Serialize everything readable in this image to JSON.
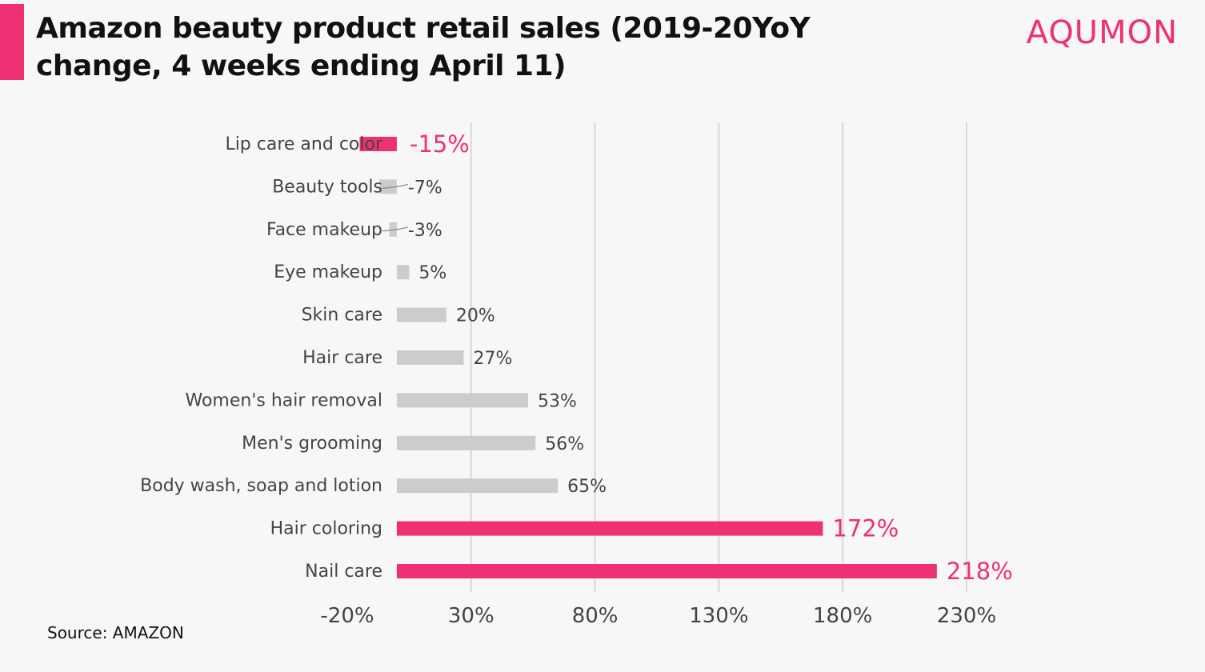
{
  "header": {
    "title": "Amazon beauty product retail sales (2019-20YoY change, 4 weeks ending April 11)",
    "logo_text": "AQUMON"
  },
  "footer": {
    "source": "Source: AMAZON"
  },
  "colors": {
    "highlight": "#ee3175",
    "default_bar": "#cccccc",
    "gridline": "#d9d9d9",
    "background": "#f7f7f7"
  },
  "chart_data": {
    "type": "bar",
    "orientation": "horizontal",
    "title": "Amazon beauty product retail sales (2019-20YoY change, 4 weeks ending April 11)",
    "categories": [
      "Lip care and color",
      "Beauty tools",
      "Face makeup",
      "Eye makeup",
      "Skin care",
      "Hair care",
      "Women's hair removal",
      "Men's grooming",
      "Body wash, soap and  lotion",
      "Hair coloring",
      "Nail care"
    ],
    "values": [
      -15,
      -7,
      -3,
      5,
      20,
      27,
      53,
      56,
      65,
      172,
      218
    ],
    "value_labels": [
      "-15%",
      "-7%",
      "-3%",
      "5%",
      "20%",
      "27%",
      "53%",
      "56%",
      "65%",
      "172%",
      "218%"
    ],
    "highlighted": [
      true,
      false,
      false,
      false,
      false,
      false,
      false,
      false,
      false,
      true,
      true
    ],
    "x_ticks": [
      "-20%",
      "30%",
      "80%",
      "130%",
      "180%",
      "230%"
    ],
    "x_tick_values": [
      -20,
      30,
      80,
      130,
      180,
      230
    ],
    "xlim": [
      -20,
      230
    ],
    "grid": true,
    "xlabel": "",
    "ylabel": ""
  }
}
